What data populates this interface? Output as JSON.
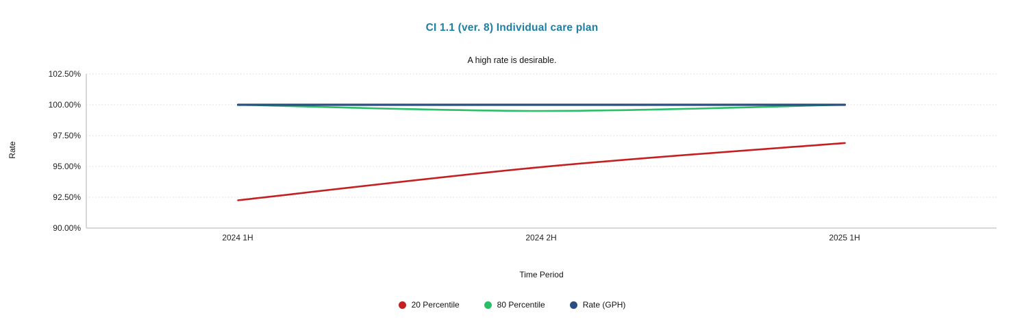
{
  "header": {
    "title": "CI 1.1 (ver. 8) Individual care plan",
    "subtitle": "A high rate is desirable.",
    "title_color": "#1d7fa3"
  },
  "chart_data": {
    "type": "line",
    "title": "CI 1.1 (ver. 8) Individual care plan",
    "subtitle": "A high rate is desirable.",
    "xlabel": "Time Period",
    "ylabel": "Rate",
    "categories": [
      "2024 1H",
      "2024 2H",
      "2025 1H"
    ],
    "series": [
      {
        "name": "20 Percentile",
        "color": "#c42022",
        "values": [
          92.25,
          94.95,
          96.9
        ]
      },
      {
        "name": "80 Percentile",
        "color": "#2bbd67",
        "values": [
          100.0,
          99.5,
          100.0
        ]
      },
      {
        "name": "Rate (GPH)",
        "color": "#2b4e80",
        "values": [
          100.0,
          100.0,
          100.0
        ]
      }
    ],
    "ylim": [
      90,
      102.5
    ],
    "y_tick_step": 2.5,
    "y_tick_labels": [
      "102.50%",
      "100.00%",
      "97.50%",
      "95.00%",
      "92.50%",
      "90.00%"
    ],
    "grid": "horizontal-dotted",
    "grid_color": "#d9d9d9",
    "axis_color": "#cccccc",
    "legend_position": "bottom"
  }
}
